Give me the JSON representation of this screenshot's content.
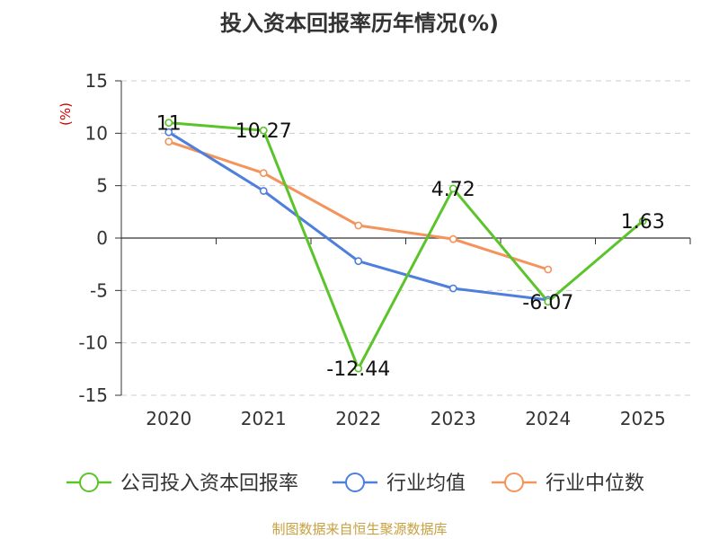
{
  "chart_data": {
    "type": "line",
    "title": "投入资本回报率历年情况(%)",
    "ylabel": "(%)",
    "categories": [
      "2020",
      "2021",
      "2022",
      "2023",
      "2024",
      "2025"
    ],
    "yticks": [
      "15",
      "10",
      "5",
      "0",
      "-5",
      "-10",
      "-15"
    ],
    "ylim": [
      -15,
      15
    ],
    "grid": true,
    "legend_position": "bottom",
    "series": [
      {
        "name": "公司投入资本回报率",
        "color": "#5bc42b",
        "values": [
          11,
          10.27,
          -12.44,
          4.72,
          -6.07,
          1.63
        ],
        "labels": [
          "11",
          "10.27",
          "-12.44",
          "4.72",
          "-6.07",
          "1.63"
        ]
      },
      {
        "name": "行业均值",
        "color": "#4e7fdc",
        "values": [
          10.1,
          4.5,
          -2.2,
          -4.8,
          -5.9,
          null
        ]
      },
      {
        "name": "行业中位数",
        "color": "#f4935c",
        "values": [
          9.2,
          6.2,
          1.2,
          -0.1,
          -3.0,
          null
        ]
      }
    ]
  },
  "source": "制图数据来自恒生聚源数据库"
}
